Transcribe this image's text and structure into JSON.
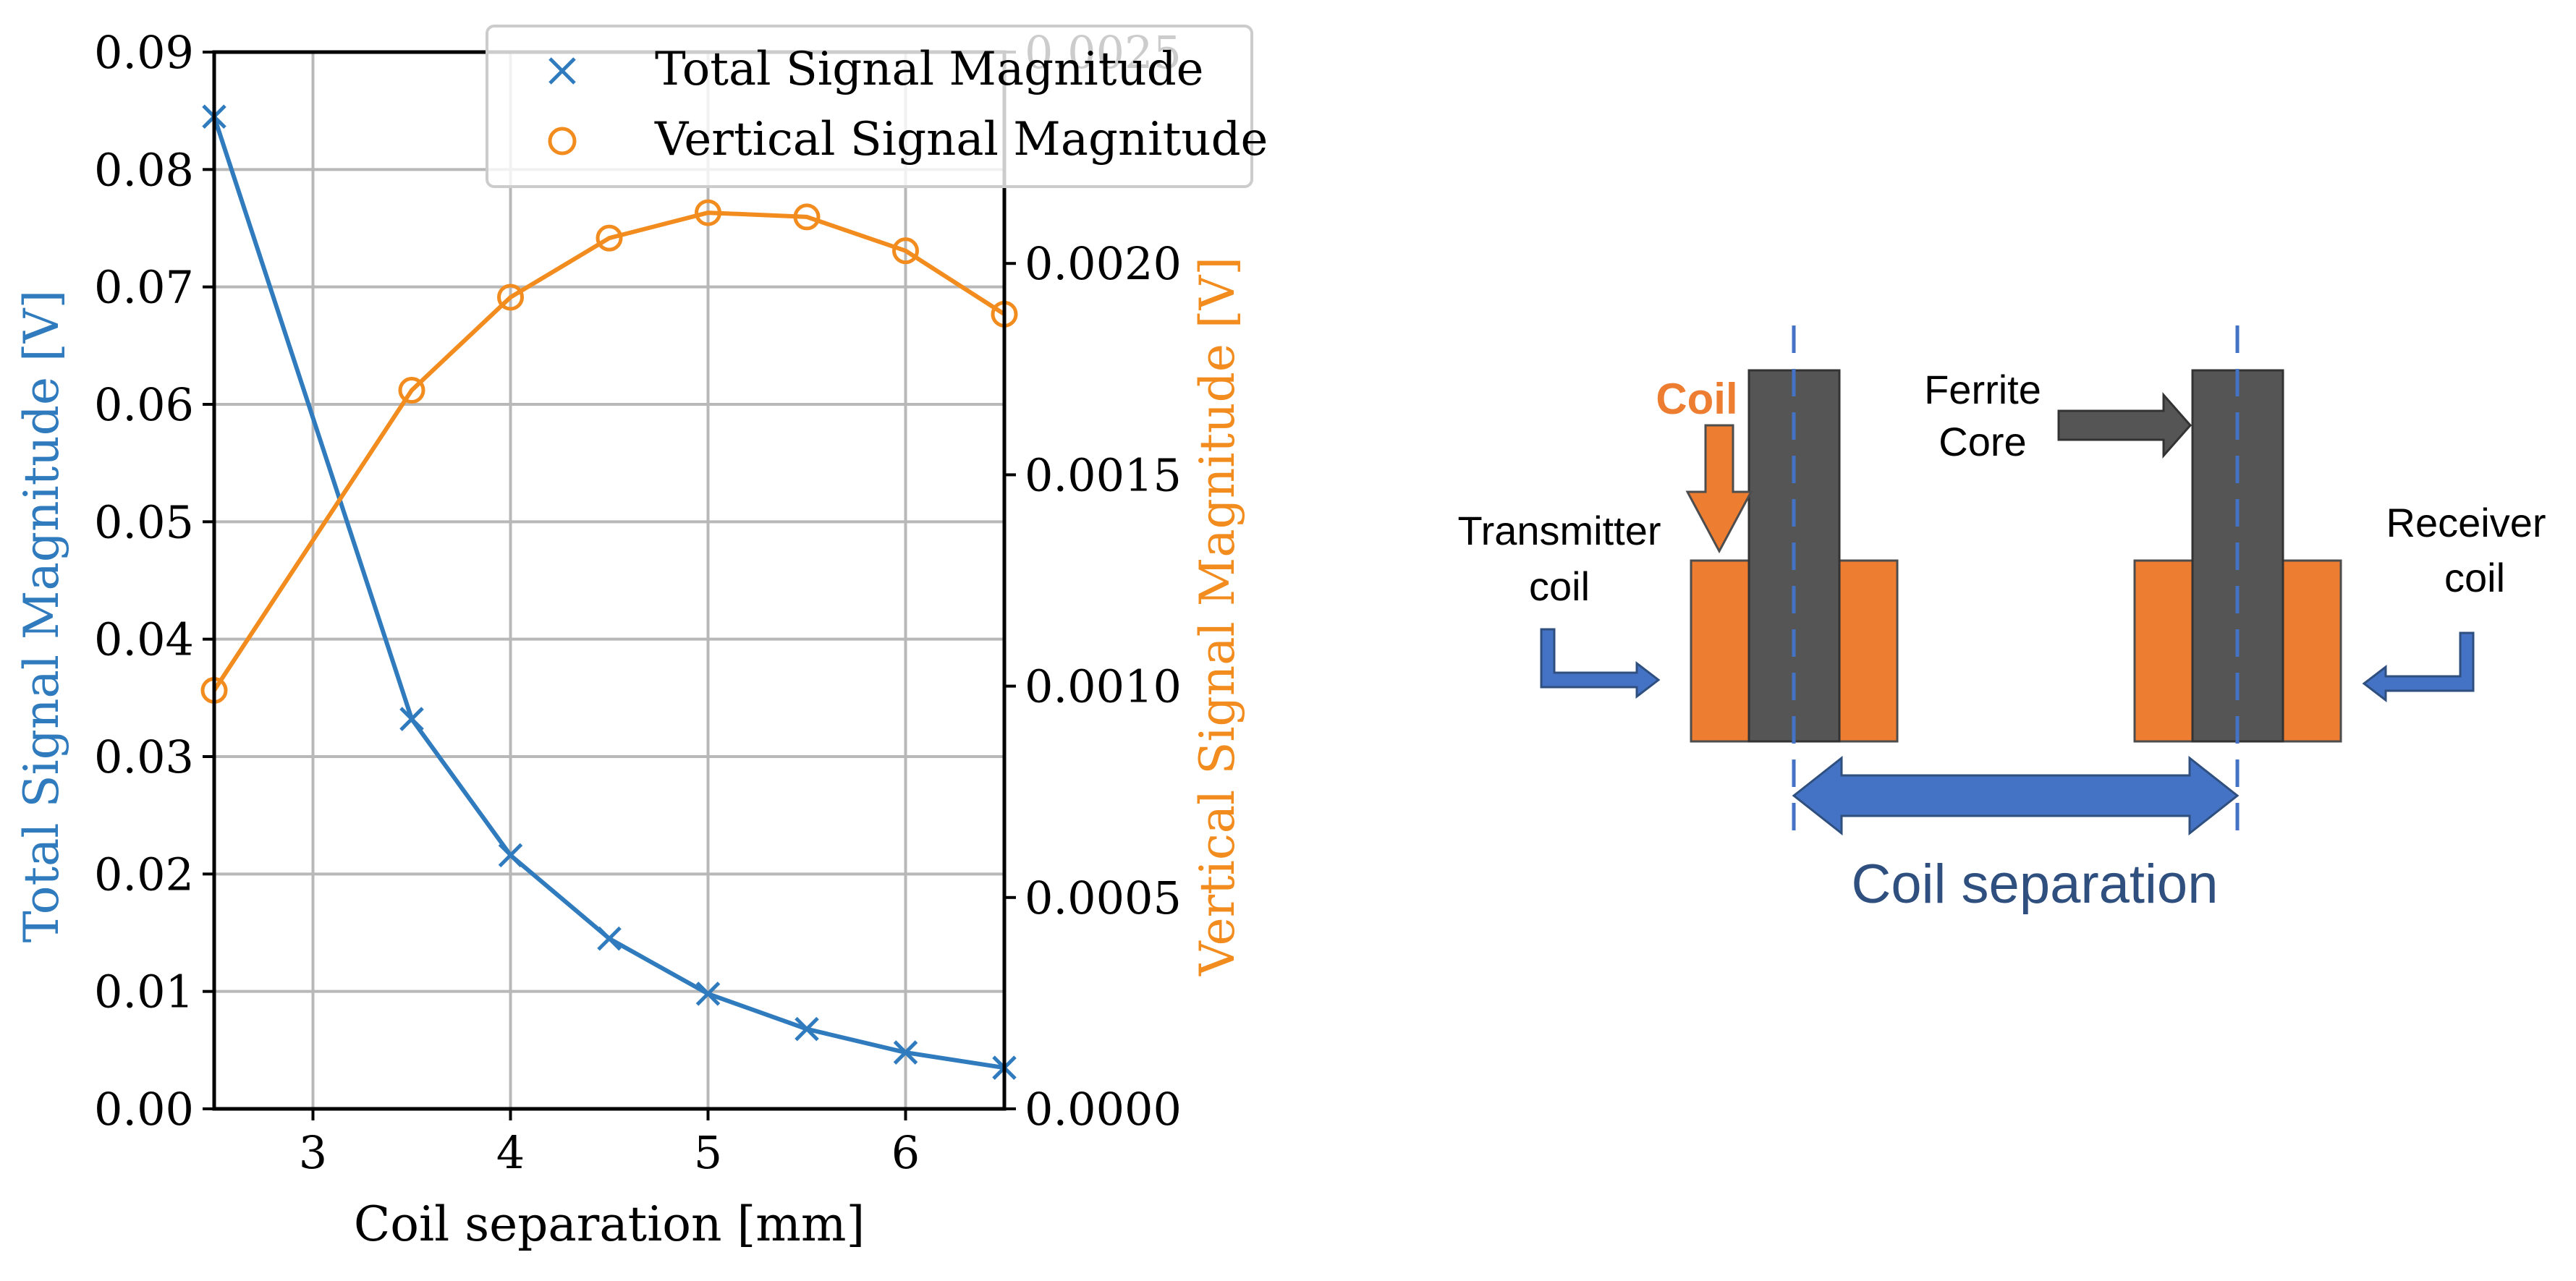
{
  "colors": {
    "total": "#2f7bbd",
    "vertical": "#f28c1e",
    "grid": "#b8b8b8",
    "axis": "#000000",
    "ferrite": "#555555",
    "coil": "#ed7d31",
    "arrow_blue": "#4472c4",
    "dash_blue": "#4472c4",
    "separation_text": "#2f4f7f"
  },
  "chart_data": {
    "type": "line",
    "dual_axis": true,
    "x": [
      2.5,
      3.5,
      4.0,
      4.5,
      5.0,
      5.5,
      6.0,
      6.5
    ],
    "xlim": [
      2.5,
      6.5
    ],
    "xticks": [
      "3",
      "4",
      "5",
      "6"
    ],
    "xtick_values": [
      3,
      4,
      5,
      6
    ],
    "xlabel": "Coil separation [mm]",
    "grid": true,
    "legend_position": "top-right",
    "left_axis": {
      "label": "Total Signal Magnitude [V]",
      "ylim": [
        0.0,
        0.09
      ],
      "ticks": [
        "0.00",
        "0.01",
        "0.02",
        "0.03",
        "0.04",
        "0.05",
        "0.06",
        "0.07",
        "0.08",
        "0.09"
      ],
      "tick_values": [
        0.0,
        0.01,
        0.02,
        0.03,
        0.04,
        0.05,
        0.06,
        0.07,
        0.08,
        0.09
      ]
    },
    "right_axis": {
      "label": "Vertical Signal Magnitude [V]",
      "ylim": [
        0.0,
        0.0025
      ],
      "ticks": [
        "0.0000",
        "0.0005",
        "0.0010",
        "0.0015",
        "0.0020",
        "0.0025"
      ],
      "tick_values": [
        0.0,
        0.0005,
        0.001,
        0.0015,
        0.002,
        0.0025
      ]
    },
    "series": [
      {
        "name": "Total Signal Magnitude",
        "axis": "left",
        "marker": "x",
        "values": [
          0.0845,
          0.0332,
          0.0216,
          0.0145,
          0.0098,
          0.0068,
          0.0048,
          0.0035
        ]
      },
      {
        "name": "Vertical Signal Magnitude",
        "axis": "right",
        "marker": "o",
        "values": [
          0.00099,
          0.0017,
          0.00192,
          0.00206,
          0.00212,
          0.00211,
          0.00203,
          0.00188
        ]
      }
    ]
  },
  "diagram": {
    "coil_label": "Coil",
    "ferrite_label_line1": "Ferrite",
    "ferrite_label_line2": "Core",
    "transmitter_line1": "Transmitter",
    "transmitter_line2": "coil",
    "receiver_line1": "Receiver",
    "receiver_line2": "coil",
    "separation_label": "Coil separation"
  }
}
